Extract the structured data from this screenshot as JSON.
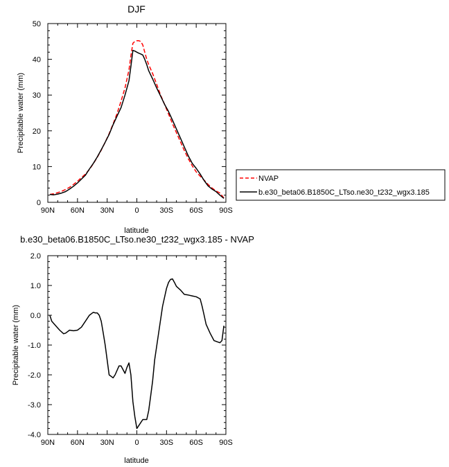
{
  "chart_data": [
    {
      "type": "line",
      "title": "DJF",
      "xlabel": "latitude",
      "ylabel": "Precipitable water (mm)",
      "xlim": [
        90,
        -90
      ],
      "ylim": [
        0,
        50
      ],
      "xticks": [
        90,
        60,
        30,
        0,
        -30,
        -60,
        -90
      ],
      "xtick_labels": [
        "90N",
        "60N",
        "30N",
        "0",
        "30S",
        "60S",
        "90S"
      ],
      "yticks": [
        0,
        10,
        20,
        30,
        40,
        50
      ],
      "ytick_labels": [
        "0",
        "10",
        "20",
        "30",
        "40",
        "50"
      ],
      "legend_position": "right",
      "series": [
        {
          "name": "NVAP",
          "color": "#ff0000",
          "dash": "dashed",
          "x": [
            88,
            84,
            80,
            76,
            72,
            68,
            64,
            60,
            56,
            52,
            48,
            44,
            40,
            36,
            32,
            28,
            24,
            20,
            16,
            12,
            8,
            6,
            4,
            2,
            0,
            -2,
            -4,
            -6,
            -8,
            -10,
            -12,
            -16,
            -20,
            -24,
            -28,
            -32,
            -36,
            -40,
            -44,
            -48,
            -52,
            -56,
            -60,
            -64,
            -68,
            -72,
            -76,
            -80,
            -84,
            -88
          ],
          "y": [
            2.2,
            2.4,
            2.7,
            3.1,
            3.6,
            4.2,
            5.0,
            5.9,
            6.9,
            7.9,
            9.2,
            10.8,
            12.6,
            14.6,
            16.8,
            19.2,
            21.9,
            24.8,
            28.3,
            32.0,
            37.0,
            41.0,
            44.5,
            45.0,
            45.2,
            45.2,
            45.0,
            44.0,
            42.0,
            40.0,
            38.5,
            36.0,
            33.0,
            30.0,
            27.4,
            24.7,
            22.0,
            19.5,
            17.0,
            14.5,
            12.2,
            10.2,
            8.5,
            7.3,
            6.2,
            5.0,
            4.0,
            3.2,
            2.6,
            1.2
          ]
        },
        {
          "name": "b.e30_beta06.B1850C_LTso.ne30_t232_wgx3.185",
          "color": "#000000",
          "dash": "solid",
          "x": [
            88,
            84,
            80,
            76,
            72,
            68,
            64,
            60,
            56,
            52,
            48,
            44,
            40,
            36,
            32,
            28,
            24,
            20,
            16,
            12,
            8,
            6,
            4,
            2,
            0,
            -2,
            -4,
            -6,
            -8,
            -10,
            -12,
            -16,
            -20,
            -24,
            -28,
            -32,
            -36,
            -40,
            -44,
            -48,
            -52,
            -56,
            -60,
            -64,
            -68,
            -72,
            -76,
            -80,
            -84,
            -88
          ],
          "y": [
            2.2,
            2.1,
            2.3,
            2.6,
            3.0,
            3.7,
            4.5,
            5.4,
            6.5,
            7.6,
            9.3,
            10.9,
            12.7,
            14.7,
            16.8,
            19.0,
            21.7,
            24.1,
            26.5,
            30.0,
            34.0,
            38.0,
            42.5,
            42.3,
            42.0,
            41.7,
            41.5,
            41.2,
            40.0,
            38.5,
            36.8,
            34.5,
            32.0,
            29.7,
            27.4,
            25.4,
            23.0,
            20.5,
            18.0,
            15.5,
            13.0,
            10.9,
            9.5,
            7.9,
            6.1,
            4.6,
            3.7,
            3.0,
            2.0,
            1.1
          ]
        }
      ]
    },
    {
      "type": "line",
      "title": "b.e30_beta06.B1850C_LTso.ne30_t232_wgx3.185 - NVAP",
      "xlabel": "latitude",
      "ylabel": "Precipitable water (mm)",
      "xlim": [
        90,
        -90
      ],
      "ylim": [
        -4.0,
        2.0
      ],
      "xticks": [
        90,
        60,
        30,
        0,
        -30,
        -60,
        -90
      ],
      "xtick_labels": [
        "90N",
        "60N",
        "30N",
        "0",
        "30S",
        "60S",
        "90S"
      ],
      "yticks": [
        2.0,
        1.0,
        0.0,
        -1.0,
        -2.0,
        -3.0,
        -4.0
      ],
      "ytick_labels": [
        "2.0",
        "1.0",
        "0.0",
        "-1.0",
        "-2.0",
        "-3.0",
        "-4.0"
      ],
      "series": [
        {
          "color": "#000000",
          "dash": "solid",
          "x": [
            88,
            86,
            82,
            78,
            74,
            72,
            68,
            64,
            60,
            56,
            52,
            48,
            44,
            42,
            40,
            38,
            36,
            34,
            32,
            28,
            24,
            22,
            18,
            16,
            12,
            10,
            8,
            6,
            4,
            2,
            0,
            -2,
            -4,
            -6,
            -8,
            -10,
            -12,
            -14,
            -16,
            -18,
            -22,
            -26,
            -30,
            -32,
            -34,
            -36,
            -38,
            -40,
            -44,
            -48,
            -52,
            -56,
            -60,
            -64,
            -66,
            -68,
            -70,
            -74,
            -78,
            -82,
            -84,
            -86,
            -88
          ],
          "y": [
            0.0,
            -0.2,
            -0.35,
            -0.5,
            -0.62,
            -0.6,
            -0.5,
            -0.52,
            -0.5,
            -0.4,
            -0.2,
            0.0,
            0.1,
            0.08,
            0.08,
            0.0,
            -0.2,
            -0.6,
            -1.0,
            -2.0,
            -2.1,
            -2.0,
            -1.7,
            -1.7,
            -1.95,
            -1.75,
            -1.6,
            -2.0,
            -2.9,
            -3.4,
            -3.8,
            -3.7,
            -3.6,
            -3.5,
            -3.5,
            -3.5,
            -3.2,
            -2.7,
            -2.2,
            -1.5,
            -0.6,
            0.3,
            0.9,
            1.1,
            1.2,
            1.22,
            1.1,
            0.97,
            0.85,
            0.7,
            0.68,
            0.65,
            0.62,
            0.55,
            0.3,
            0.0,
            -0.3,
            -0.6,
            -0.85,
            -0.9,
            -0.92,
            -0.85,
            -0.35
          ]
        }
      ]
    }
  ]
}
